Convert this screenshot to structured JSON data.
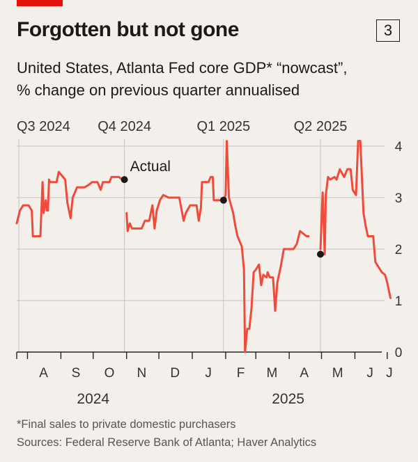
{
  "header": {
    "title": "Forgotten but not gone",
    "fig_number": "3",
    "subtitle_line1": "United States, Atlanta Fed core GDP* “nowcast”,",
    "subtitle_line2": "% change on previous quarter annualised"
  },
  "footer": {
    "footnote": "*Final sales to private domestic purchasers",
    "sources": "Sources: Federal Reserve Bank of Atlanta; Haver Analytics"
  },
  "colors": {
    "line": "#f04a3a",
    "grid": "#cfcac4",
    "text": "#1a1a1a"
  },
  "chart_data": {
    "type": "line",
    "title": "Forgotten but not gone",
    "ylabel": "% change on previous quarter annualised",
    "ylim": [
      0,
      4
    ],
    "y_ticks": [
      "0",
      "1",
      "2",
      "3",
      "4"
    ],
    "x_range": [
      "2024-07-22",
      "2025-07-05"
    ],
    "month_labels": [
      {
        "label": "A",
        "date": "2024-08-16"
      },
      {
        "label": "S",
        "date": "2024-09-15"
      },
      {
        "label": "O",
        "date": "2024-10-16"
      },
      {
        "label": "N",
        "date": "2024-11-15"
      },
      {
        "label": "D",
        "date": "2024-12-16"
      },
      {
        "label": "J",
        "date": "2025-01-16"
      },
      {
        "label": "F",
        "date": "2025-02-15"
      },
      {
        "label": "M",
        "date": "2025-03-16"
      },
      {
        "label": "A",
        "date": "2025-04-15"
      },
      {
        "label": "M",
        "date": "2025-05-16"
      },
      {
        "label": "J",
        "date": "2025-06-15"
      },
      {
        "label": "J",
        "date": "2025-07-03"
      }
    ],
    "month_ticks": [
      "2024-08-01",
      "2024-09-01",
      "2024-10-01",
      "2024-11-01",
      "2024-12-01",
      "2025-01-01",
      "2025-02-01",
      "2025-03-01",
      "2025-04-01",
      "2025-05-01",
      "2025-06-01",
      "2025-07-01"
    ],
    "year_labels": [
      {
        "label": "2024",
        "date": "2024-10-01"
      },
      {
        "label": "2025",
        "date": "2025-03-31"
      }
    ],
    "quarter_lines": [
      {
        "label": "Q3 2024",
        "date": "2024-07-24"
      },
      {
        "label": "Q4 2024",
        "date": "2024-10-30"
      },
      {
        "label": "Q1 2025",
        "date": "2025-01-30"
      },
      {
        "label": "Q2 2025",
        "date": "2025-04-30"
      }
    ],
    "annotation": "Actual",
    "actual_points": [
      {
        "date": "2024-10-30",
        "value": 3.35
      },
      {
        "date": "2025-01-30",
        "value": 2.95
      },
      {
        "date": "2025-04-30",
        "value": 1.9
      }
    ],
    "series": [
      {
        "segments": [
          [
            [
              "2024-07-22",
              2.5
            ],
            [
              "2024-07-25",
              2.75
            ],
            [
              "2024-07-28",
              2.85
            ],
            [
              "2024-08-02",
              2.85
            ],
            [
              "2024-08-05",
              2.75
            ],
            [
              "2024-08-06",
              2.25
            ],
            [
              "2024-08-13",
              2.25
            ],
            [
              "2024-08-15",
              3.3
            ],
            [
              "2024-08-16",
              2.7
            ],
            [
              "2024-08-18",
              2.95
            ],
            [
              "2024-08-19",
              2.75
            ],
            [
              "2024-08-20",
              2.75
            ],
            [
              "2024-08-21",
              3.35
            ],
            [
              "2024-08-22",
              3.3
            ],
            [
              "2024-08-28",
              3.3
            ],
            [
              "2024-08-30",
              3.5
            ],
            [
              "2024-09-03",
              3.4
            ],
            [
              "2024-09-05",
              3.35
            ],
            [
              "2024-09-07",
              2.9
            ],
            [
              "2024-09-10",
              2.6
            ],
            [
              "2024-09-12",
              3.0
            ],
            [
              "2024-09-14",
              3.1
            ],
            [
              "2024-09-16",
              3.2
            ],
            [
              "2024-09-23",
              3.2
            ],
            [
              "2024-09-27",
              3.25
            ],
            [
              "2024-09-30",
              3.3
            ],
            [
              "2024-10-05",
              3.3
            ],
            [
              "2024-10-08",
              3.15
            ],
            [
              "2024-10-10",
              3.3
            ],
            [
              "2024-10-16",
              3.3
            ],
            [
              "2024-10-18",
              3.4
            ],
            [
              "2024-10-25",
              3.4
            ],
            [
              "2024-10-28",
              3.35
            ]
          ],
          [
            [
              "2024-11-01",
              2.7
            ],
            [
              "2024-11-02",
              2.35
            ],
            [
              "2024-11-04",
              2.5
            ],
            [
              "2024-11-06",
              2.4
            ],
            [
              "2024-11-15",
              2.4
            ],
            [
              "2024-11-18",
              2.55
            ],
            [
              "2024-11-22",
              2.55
            ],
            [
              "2024-11-25",
              2.85
            ],
            [
              "2024-11-27",
              2.4
            ],
            [
              "2024-11-29",
              2.75
            ],
            [
              "2024-12-02",
              2.95
            ],
            [
              "2024-12-05",
              3.05
            ],
            [
              "2024-12-10",
              3.0
            ],
            [
              "2024-12-20",
              3.0
            ],
            [
              "2024-12-24",
              2.55
            ],
            [
              "2024-12-26",
              2.7
            ],
            [
              "2024-12-30",
              2.85
            ],
            [
              "2025-01-05",
              2.85
            ],
            [
              "2025-01-07",
              2.55
            ],
            [
              "2025-01-09",
              2.8
            ],
            [
              "2025-01-10",
              3.3
            ],
            [
              "2025-01-16",
              3.3
            ],
            [
              "2025-01-18",
              3.4
            ],
            [
              "2025-01-20",
              3.4
            ],
            [
              "2025-01-21",
              2.95
            ],
            [
              "2025-01-30",
              2.95
            ],
            [
              "2025-02-01",
              3.05
            ],
            [
              "2025-02-02",
              4.1
            ],
            [
              "2025-02-04",
              3.0
            ],
            [
              "2025-02-08",
              2.7
            ],
            [
              "2025-02-10",
              2.45
            ],
            [
              "2025-02-12",
              2.25
            ],
            [
              "2025-02-16",
              2.05
            ],
            [
              "2025-02-18",
              1.6
            ],
            [
              "2025-02-19",
              0.0
            ],
            [
              "2025-02-21",
              0.45
            ],
            [
              "2025-02-23",
              0.45
            ],
            [
              "2025-02-25",
              0.85
            ],
            [
              "2025-02-27",
              1.55
            ],
            [
              "2025-03-01",
              1.6
            ],
            [
              "2025-03-04",
              1.7
            ],
            [
              "2025-03-06",
              1.3
            ],
            [
              "2025-03-08",
              1.5
            ],
            [
              "2025-03-11",
              1.45
            ],
            [
              "2025-03-12",
              1.55
            ],
            [
              "2025-03-14",
              1.45
            ],
            [
              "2025-03-17",
              1.45
            ],
            [
              "2025-03-19",
              0.8
            ],
            [
              "2025-03-21",
              1.35
            ],
            [
              "2025-03-24",
              1.65
            ],
            [
              "2025-03-27",
              2.0
            ],
            [
              "2025-04-05",
              2.0
            ],
            [
              "2025-04-08",
              2.1
            ],
            [
              "2025-04-11",
              2.35
            ],
            [
              "2025-04-17",
              2.25
            ],
            [
              "2025-04-19",
              2.25
            ]
          ],
          [
            [
              "2025-04-30",
              2.0
            ],
            [
              "2025-05-02",
              3.1
            ],
            [
              "2025-05-04",
              1.9
            ],
            [
              "2025-05-05",
              3.05
            ],
            [
              "2025-05-07",
              3.4
            ],
            [
              "2025-05-09",
              3.35
            ],
            [
              "2025-05-13",
              3.4
            ],
            [
              "2025-05-15",
              3.35
            ],
            [
              "2025-05-18",
              3.55
            ],
            [
              "2025-05-22",
              3.4
            ],
            [
              "2025-05-25",
              3.55
            ],
            [
              "2025-05-28",
              3.55
            ],
            [
              "2025-05-30",
              3.15
            ],
            [
              "2025-06-02",
              3.05
            ],
            [
              "2025-06-04",
              4.1
            ],
            [
              "2025-06-06",
              4.1
            ],
            [
              "2025-06-09",
              2.7
            ],
            [
              "2025-06-11",
              2.45
            ],
            [
              "2025-06-13",
              2.25
            ],
            [
              "2025-06-18",
              2.25
            ],
            [
              "2025-06-20",
              1.75
            ],
            [
              "2025-06-23",
              1.65
            ],
            [
              "2025-06-26",
              1.55
            ],
            [
              "2025-06-29",
              1.5
            ],
            [
              "2025-07-01",
              1.35
            ],
            [
              "2025-07-04",
              1.05
            ]
          ]
        ]
      }
    ]
  }
}
